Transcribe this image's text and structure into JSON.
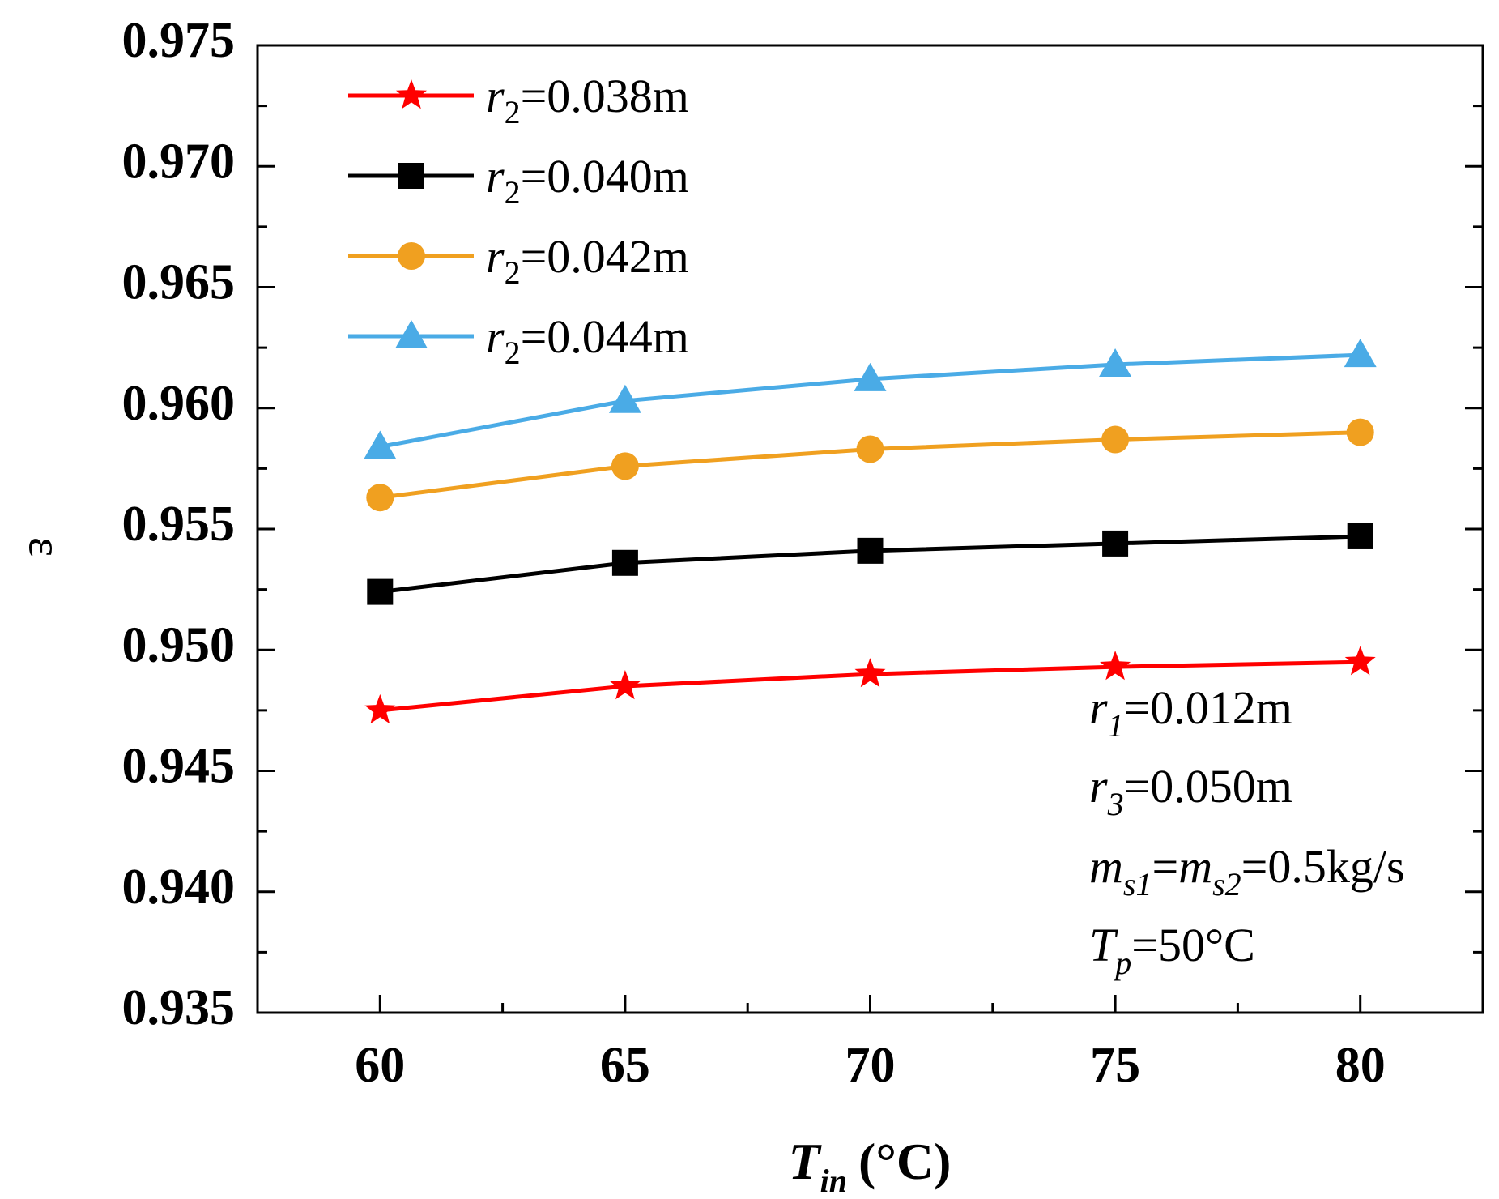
{
  "chart_data": {
    "type": "line",
    "title": "",
    "xlabel": "Tin (°C)",
    "xlabel_parts": {
      "main": "T",
      "sub": "in",
      "unit": "(°C)"
    },
    "ylabel": "ε",
    "x": [
      60,
      65,
      70,
      75,
      80
    ],
    "xlim": [
      57.5,
      82.5
    ],
    "ylim": [
      0.935,
      0.975
    ],
    "x_ticks": [
      "60",
      "65",
      "70",
      "75",
      "80"
    ],
    "y_ticks": [
      "0.935",
      "0.940",
      "0.945",
      "0.950",
      "0.955",
      "0.960",
      "0.965",
      "0.970",
      "0.975"
    ],
    "y_tick_values": [
      0.935,
      0.94,
      0.945,
      0.95,
      0.955,
      0.96,
      0.965,
      0.97,
      0.975
    ],
    "grid": false,
    "legend_position": "top-left",
    "series": [
      {
        "name": "r2=0.038m",
        "var": "r",
        "sub": "2",
        "rest": "=0.038m",
        "color": "#ff0000",
        "marker": "star",
        "values": [
          0.9475,
          0.9485,
          0.949,
          0.9493,
          0.9495
        ]
      },
      {
        "name": "r2=0.040m",
        "var": "r",
        "sub": "2",
        "rest": "=0.040m",
        "color": "#000000",
        "marker": "square",
        "values": [
          0.9524,
          0.9536,
          0.9541,
          0.9544,
          0.9547
        ]
      },
      {
        "name": "r2=0.042m",
        "var": "r",
        "sub": "2",
        "rest": "=0.042m",
        "color": "#f0a020",
        "marker": "circle",
        "values": [
          0.9563,
          0.9576,
          0.9583,
          0.9587,
          0.959
        ]
      },
      {
        "name": "r2=0.044m",
        "var": "r",
        "sub": "2",
        "rest": "=0.044m",
        "color": "#4aabe6",
        "marker": "triangle",
        "values": [
          0.9584,
          0.9603,
          0.9612,
          0.9618,
          0.9622
        ]
      }
    ],
    "annotations": [
      {
        "text": "r1=0.012m",
        "parts": [
          [
            "r",
            "it"
          ],
          [
            "1",
            "sub-it"
          ],
          [
            "=0.012m",
            ""
          ]
        ]
      },
      {
        "text": "r3=0.050m",
        "parts": [
          [
            "r",
            "it"
          ],
          [
            "3",
            "sub-it"
          ],
          [
            "=0.050m",
            ""
          ]
        ]
      },
      {
        "text": "ms1=ms2=0.5kg/s",
        "parts": [
          [
            "m",
            "it"
          ],
          [
            "s1",
            "sub-it"
          ],
          [
            "=",
            ""
          ],
          [
            "m",
            "it"
          ],
          [
            "s2",
            "sub-it"
          ],
          [
            "=0.5kg/s",
            ""
          ]
        ]
      },
      {
        "text": "Tp=50°C",
        "parts": [
          [
            "T",
            "it"
          ],
          [
            "p",
            "sub-it"
          ],
          [
            "=50°C",
            ""
          ]
        ]
      }
    ]
  }
}
